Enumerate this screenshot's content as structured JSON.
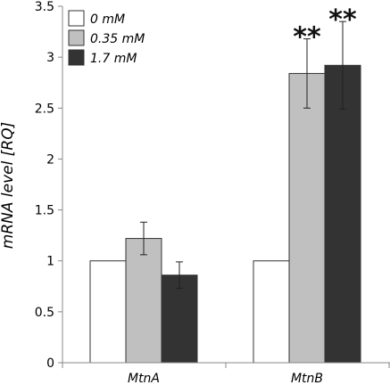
{
  "chart_data": {
    "type": "bar",
    "title": "",
    "xlabel": "",
    "ylabel": "mRNA level [RQ]",
    "ylim": [
      0,
      3.5
    ],
    "yticks": [
      "0",
      "0.5",
      "1",
      "1.5",
      "2",
      "2.5",
      "3",
      "3.5"
    ],
    "grid": false,
    "legend_position": "top-left",
    "categories": [
      "MtnA",
      "MtnB"
    ],
    "series": [
      {
        "name": "0 mM",
        "color": "#ffffff",
        "values": [
          1.0,
          1.0
        ],
        "errors": [
          null,
          null
        ]
      },
      {
        "name": "0.35 mM",
        "color": "#c0c0c0",
        "values": [
          1.22,
          2.84
        ],
        "errors": [
          0.16,
          0.34
        ]
      },
      {
        "name": "1.7 mM",
        "color": "#333333",
        "values": [
          0.86,
          2.92
        ],
        "errors": [
          0.13,
          0.43
        ]
      }
    ],
    "annotations": [
      {
        "text": "**",
        "category": "MtnB",
        "series": "0.35 mM"
      },
      {
        "text": "**",
        "category": "MtnB",
        "series": "1.7 mM"
      }
    ]
  }
}
